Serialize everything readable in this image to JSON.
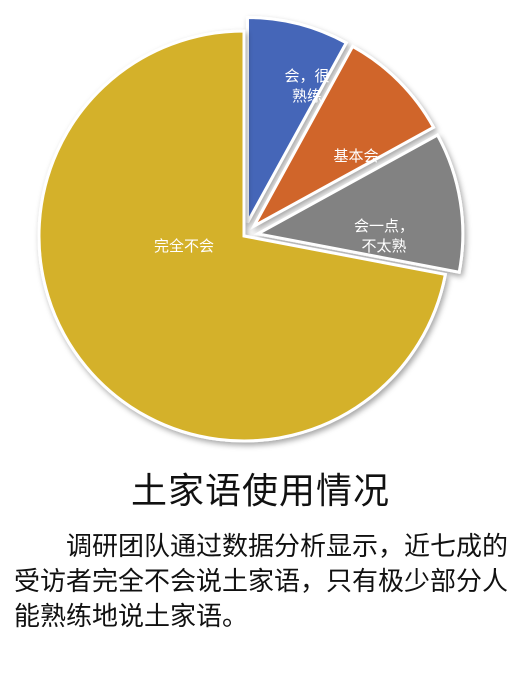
{
  "chart_data": {
    "type": "pie",
    "title": "土家语使用情况",
    "slices": [
      {
        "label": "会，很熟练",
        "value": 8,
        "color": "#4466b8",
        "lines": [
          "会，很",
          "熟练"
        ]
      },
      {
        "label": "基本会",
        "value": 9,
        "color": "#d0652a",
        "lines": [
          "基本会"
        ]
      },
      {
        "label": "会一点，不太熟",
        "value": 11,
        "color": "#828282",
        "lines": [
          "会一点，",
          "不太熟"
        ]
      },
      {
        "label": "完全不会",
        "value": 72,
        "color": "#d4b12a",
        "lines": [
          "完全不会"
        ]
      }
    ],
    "legend": "none"
  },
  "caption": "调研团队通过数据分析显示，近七成的受访者完全不会说土家语，只有极少部分人能熟练地说土家语。"
}
